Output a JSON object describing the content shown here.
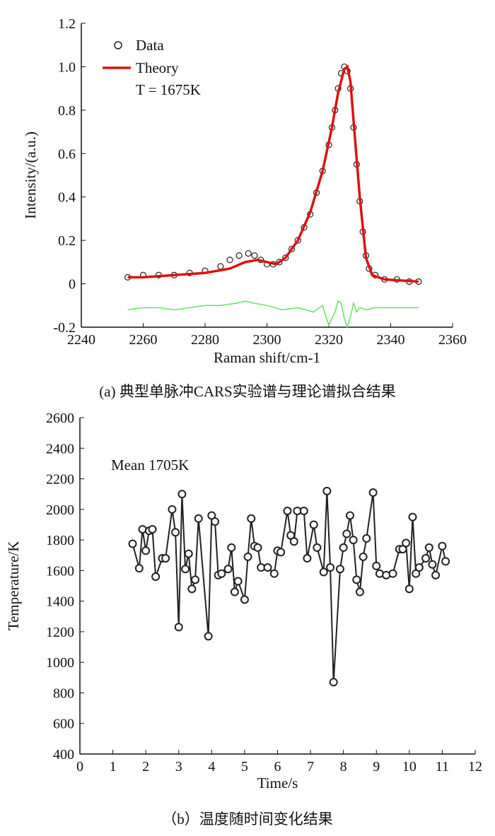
{
  "chart_data": [
    {
      "type": "line",
      "xlabel": "Raman shift/cm-1",
      "ylabel": "Intensity/(a.u.)",
      "xlim": [
        2240,
        2360
      ],
      "ylim": [
        -0.2,
        1.2
      ],
      "xticks": [
        "2240",
        "2260",
        "2280",
        "2300",
        "2320",
        "2340",
        "2360"
      ],
      "yticks": [
        "-0.2",
        "0",
        "0.2",
        "0.4",
        "0.6",
        "0.8",
        "1.0",
        "1.2"
      ],
      "legend": {
        "placement": "top-left",
        "entries": [
          "Data",
          "Theory"
        ],
        "annotation": "T = 1675K"
      },
      "caption": "(a) 典型单脉冲CARS实验谱与理论谱拟合结果",
      "series": [
        {
          "name": "Theory",
          "color": "#e01010",
          "x": [
            2255,
            2260,
            2270,
            2280,
            2288,
            2293,
            2297,
            2300,
            2303,
            2306,
            2310,
            2314,
            2318,
            2321,
            2323,
            2325,
            2326,
            2327,
            2328,
            2330,
            2332,
            2334,
            2338,
            2349
          ],
          "y": [
            0.03,
            0.03,
            0.04,
            0.05,
            0.07,
            0.1,
            0.11,
            0.1,
            0.09,
            0.12,
            0.2,
            0.33,
            0.52,
            0.72,
            0.88,
            0.99,
            1.0,
            0.93,
            0.75,
            0.4,
            0.12,
            0.04,
            0.02,
            0.01
          ]
        },
        {
          "name": "Data",
          "color": "#222222",
          "x": [
            2255,
            2260,
            2265,
            2270,
            2275,
            2280,
            2285,
            2288,
            2291,
            2294,
            2296,
            2298,
            2300,
            2302,
            2304,
            2306,
            2308,
            2310,
            2312,
            2314,
            2316,
            2318,
            2320,
            2321,
            2322,
            2323,
            2324,
            2325,
            2326,
            2327,
            2328,
            2329,
            2330,
            2331,
            2332,
            2333,
            2335,
            2338,
            2342,
            2346,
            2349
          ],
          "y": [
            0.03,
            0.04,
            0.04,
            0.04,
            0.05,
            0.06,
            0.08,
            0.11,
            0.13,
            0.14,
            0.13,
            0.11,
            0.09,
            0.09,
            0.1,
            0.12,
            0.16,
            0.2,
            0.26,
            0.32,
            0.42,
            0.52,
            0.64,
            0.72,
            0.8,
            0.9,
            0.97,
            1.0,
            0.98,
            0.9,
            0.72,
            0.55,
            0.38,
            0.24,
            0.13,
            0.07,
            0.04,
            0.02,
            0.02,
            0.01,
            0.01
          ]
        },
        {
          "name": "Residual",
          "color": "#66e066",
          "x": [
            2255,
            2260,
            2265,
            2270,
            2275,
            2280,
            2285,
            2290,
            2293,
            2296,
            2300,
            2305,
            2310,
            2315,
            2318,
            2319,
            2320,
            2322,
            2323,
            2324,
            2325,
            2326,
            2327,
            2328,
            2329,
            2330,
            2332,
            2335,
            2340,
            2349
          ],
          "y": [
            -0.12,
            -0.11,
            -0.11,
            -0.12,
            -0.11,
            -0.1,
            -0.1,
            -0.09,
            -0.08,
            -0.09,
            -0.1,
            -0.12,
            -0.11,
            -0.13,
            -0.1,
            -0.15,
            -0.19,
            -0.13,
            -0.08,
            -0.09,
            -0.16,
            -0.2,
            -0.15,
            -0.09,
            -0.13,
            -0.11,
            -0.12,
            -0.11,
            -0.11,
            -0.11
          ]
        }
      ]
    },
    {
      "type": "line",
      "xlabel": "Time/s",
      "ylabel": "Temperature/K",
      "xlim": [
        0,
        12
      ],
      "ylim": [
        400,
        2600
      ],
      "xticks": [
        "0",
        "1",
        "2",
        "3",
        "4",
        "5",
        "6",
        "7",
        "8",
        "9",
        "10",
        "11",
        "12"
      ],
      "yticks": [
        "400",
        "600",
        "800",
        "1000",
        "1200",
        "1400",
        "1600",
        "1800",
        "2000",
        "2200",
        "2400",
        "2600"
      ],
      "annotation": "Mean 1705K",
      "caption": "（b）温度随时间变化结果",
      "x": [
        1.6,
        1.8,
        1.9,
        2.0,
        2.1,
        2.2,
        2.3,
        2.5,
        2.6,
        2.8,
        2.9,
        3.0,
        3.1,
        3.2,
        3.3,
        3.4,
        3.5,
        3.6,
        3.9,
        4.0,
        4.1,
        4.2,
        4.3,
        4.5,
        4.6,
        4.7,
        4.8,
        5.0,
        5.1,
        5.2,
        5.3,
        5.4,
        5.5,
        5.7,
        5.9,
        6.0,
        6.1,
        6.3,
        6.4,
        6.5,
        6.6,
        6.8,
        6.9,
        7.1,
        7.2,
        7.4,
        7.5,
        7.6,
        7.7,
        7.9,
        8.0,
        8.1,
        8.2,
        8.3,
        8.4,
        8.5,
        8.6,
        8.7,
        8.9,
        9.0,
        9.1,
        9.3,
        9.5,
        9.7,
        9.8,
        9.9,
        10.0,
        10.1,
        10.2,
        10.3,
        10.5,
        10.6,
        10.7,
        10.8,
        11.0,
        11.1
      ],
      "y": [
        1775,
        1615,
        1870,
        1730,
        1860,
        1870,
        1560,
        1680,
        1680,
        2000,
        1850,
        1230,
        2100,
        1610,
        1710,
        1480,
        1540,
        1940,
        1170,
        1960,
        1920,
        1570,
        1580,
        1610,
        1750,
        1460,
        1530,
        1410,
        1690,
        1940,
        1760,
        1750,
        1620,
        1620,
        1580,
        1730,
        1720,
        1990,
        1830,
        1790,
        1990,
        1990,
        1680,
        1900,
        1750,
        1590,
        2120,
        1620,
        870,
        1610,
        1750,
        1840,
        1960,
        1800,
        1540,
        1460,
        1690,
        1810,
        2110,
        1630,
        1580,
        1570,
        1580,
        1740,
        1740,
        1780,
        1480,
        1950,
        1580,
        1620,
        1680,
        1750,
        1640,
        1570,
        1760,
        1660
      ]
    }
  ]
}
